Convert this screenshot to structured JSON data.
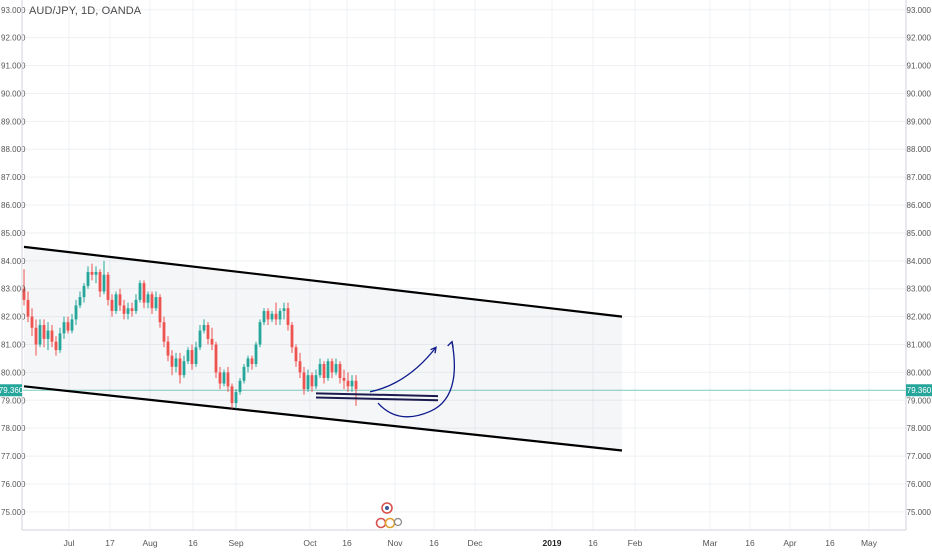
{
  "chart_data": {
    "type": "candlestick",
    "title": "AUD/JPY, 1D, OANDA",
    "y_axis": {
      "range": [
        74.35,
        93.35
      ],
      "ticks": [
        "93.000",
        "92.000",
        "91.000",
        "90.000",
        "89.000",
        "88.000",
        "87.000",
        "86.000",
        "85.000",
        "84.000",
        "83.000",
        "82.000",
        "81.000",
        "80.000",
        "79.000",
        "78.000",
        "77.000",
        "76.000",
        "75.000"
      ],
      "positions": [
        "left",
        "right"
      ]
    },
    "x_axis": {
      "tick_labels": [
        "Jul",
        "17",
        "Aug",
        "16",
        "Sep",
        "Oct",
        "16",
        "Nov",
        "16",
        "Dec",
        "2019",
        "16",
        "Feb",
        "Mar",
        "16",
        "Apr",
        "16",
        "May"
      ],
      "bold_labels": [
        "2019"
      ]
    },
    "current_price": {
      "label": "79.360",
      "value": 79.36,
      "color": "#26a69a"
    },
    "candles": [
      {
        "o": 83.0,
        "h": 83.7,
        "l": 82.4,
        "c": 82.6
      },
      {
        "o": 82.6,
        "h": 82.9,
        "l": 81.8,
        "c": 82.0
      },
      {
        "o": 82.0,
        "h": 82.3,
        "l": 81.3,
        "c": 81.6
      },
      {
        "o": 81.6,
        "h": 81.9,
        "l": 80.6,
        "c": 81.0
      },
      {
        "o": 81.0,
        "h": 81.9,
        "l": 80.9,
        "c": 81.7
      },
      {
        "o": 81.7,
        "h": 81.9,
        "l": 80.9,
        "c": 81.2
      },
      {
        "o": 81.2,
        "h": 81.8,
        "l": 80.8,
        "c": 81.5
      },
      {
        "o": 81.5,
        "h": 81.7,
        "l": 80.9,
        "c": 81.1
      },
      {
        "o": 81.1,
        "h": 81.3,
        "l": 80.6,
        "c": 80.8
      },
      {
        "o": 80.8,
        "h": 81.6,
        "l": 80.7,
        "c": 81.4
      },
      {
        "o": 81.4,
        "h": 82.0,
        "l": 81.2,
        "c": 81.8
      },
      {
        "o": 81.8,
        "h": 82.0,
        "l": 81.4,
        "c": 81.5
      },
      {
        "o": 81.5,
        "h": 82.1,
        "l": 81.4,
        "c": 81.9
      },
      {
        "o": 81.9,
        "h": 82.6,
        "l": 81.7,
        "c": 82.4
      },
      {
        "o": 82.4,
        "h": 82.9,
        "l": 82.3,
        "c": 82.7
      },
      {
        "o": 82.7,
        "h": 83.2,
        "l": 82.5,
        "c": 83.1
      },
      {
        "o": 83.1,
        "h": 83.8,
        "l": 83.0,
        "c": 83.6
      },
      {
        "o": 83.6,
        "h": 83.9,
        "l": 83.3,
        "c": 83.5
      },
      {
        "o": 83.5,
        "h": 83.8,
        "l": 83.2,
        "c": 83.6
      },
      {
        "o": 83.6,
        "h": 83.7,
        "l": 82.7,
        "c": 82.9
      },
      {
        "o": 82.9,
        "h": 84.0,
        "l": 82.8,
        "c": 83.5
      },
      {
        "o": 83.5,
        "h": 83.6,
        "l": 82.4,
        "c": 82.6
      },
      {
        "o": 82.6,
        "h": 82.8,
        "l": 82.0,
        "c": 82.2
      },
      {
        "o": 82.2,
        "h": 82.9,
        "l": 82.1,
        "c": 82.8
      },
      {
        "o": 82.8,
        "h": 83.0,
        "l": 82.2,
        "c": 82.4
      },
      {
        "o": 82.4,
        "h": 82.6,
        "l": 81.9,
        "c": 82.1
      },
      {
        "o": 82.1,
        "h": 82.5,
        "l": 81.9,
        "c": 82.3
      },
      {
        "o": 82.3,
        "h": 82.5,
        "l": 82.0,
        "c": 82.2
      },
      {
        "o": 82.2,
        "h": 82.8,
        "l": 82.1,
        "c": 82.6
      },
      {
        "o": 82.6,
        "h": 83.3,
        "l": 82.5,
        "c": 83.2
      },
      {
        "o": 83.2,
        "h": 83.3,
        "l": 82.3,
        "c": 82.5
      },
      {
        "o": 82.5,
        "h": 82.9,
        "l": 82.3,
        "c": 82.8
      },
      {
        "o": 82.8,
        "h": 82.9,
        "l": 82.1,
        "c": 82.3
      },
      {
        "o": 82.3,
        "h": 82.9,
        "l": 82.2,
        "c": 82.7
      },
      {
        "o": 82.7,
        "h": 82.8,
        "l": 81.6,
        "c": 81.8
      },
      {
        "o": 81.8,
        "h": 82.0,
        "l": 80.9,
        "c": 81.1
      },
      {
        "o": 81.1,
        "h": 81.3,
        "l": 80.4,
        "c": 80.6
      },
      {
        "o": 80.6,
        "h": 80.8,
        "l": 79.9,
        "c": 80.2
      },
      {
        "o": 80.2,
        "h": 80.7,
        "l": 80.0,
        "c": 80.5
      },
      {
        "o": 80.5,
        "h": 80.7,
        "l": 79.6,
        "c": 79.9
      },
      {
        "o": 79.9,
        "h": 80.6,
        "l": 79.8,
        "c": 80.4
      },
      {
        "o": 80.4,
        "h": 80.9,
        "l": 80.3,
        "c": 80.8
      },
      {
        "o": 80.8,
        "h": 81.0,
        "l": 80.1,
        "c": 80.3
      },
      {
        "o": 80.3,
        "h": 81.1,
        "l": 80.2,
        "c": 80.9
      },
      {
        "o": 80.9,
        "h": 81.7,
        "l": 80.8,
        "c": 81.5
      },
      {
        "o": 81.5,
        "h": 81.9,
        "l": 81.4,
        "c": 81.7
      },
      {
        "o": 81.7,
        "h": 81.8,
        "l": 81.0,
        "c": 81.2
      },
      {
        "o": 81.2,
        "h": 81.6,
        "l": 80.8,
        "c": 81.0
      },
      {
        "o": 81.0,
        "h": 81.1,
        "l": 79.8,
        "c": 80.0
      },
      {
        "o": 80.0,
        "h": 80.2,
        "l": 79.4,
        "c": 79.6
      },
      {
        "o": 79.6,
        "h": 80.1,
        "l": 79.5,
        "c": 80.0
      },
      {
        "o": 80.0,
        "h": 80.2,
        "l": 79.3,
        "c": 79.5
      },
      {
        "o": 79.5,
        "h": 79.6,
        "l": 78.7,
        "c": 78.9
      },
      {
        "o": 78.9,
        "h": 79.4,
        "l": 78.7,
        "c": 79.3
      },
      {
        "o": 79.3,
        "h": 79.8,
        "l": 79.2,
        "c": 79.7
      },
      {
        "o": 79.7,
        "h": 80.3,
        "l": 79.6,
        "c": 80.2
      },
      {
        "o": 80.2,
        "h": 80.6,
        "l": 80.0,
        "c": 80.5
      },
      {
        "o": 80.5,
        "h": 80.6,
        "l": 80.1,
        "c": 80.3
      },
      {
        "o": 80.3,
        "h": 81.1,
        "l": 80.2,
        "c": 81.0
      },
      {
        "o": 81.0,
        "h": 81.9,
        "l": 80.9,
        "c": 81.8
      },
      {
        "o": 81.8,
        "h": 82.3,
        "l": 81.7,
        "c": 82.2
      },
      {
        "o": 82.2,
        "h": 82.3,
        "l": 81.7,
        "c": 81.9
      },
      {
        "o": 81.9,
        "h": 82.2,
        "l": 81.8,
        "c": 82.1
      },
      {
        "o": 82.1,
        "h": 82.5,
        "l": 81.7,
        "c": 81.9
      },
      {
        "o": 81.9,
        "h": 82.3,
        "l": 81.7,
        "c": 82.2
      },
      {
        "o": 82.2,
        "h": 82.5,
        "l": 81.9,
        "c": 82.3
      },
      {
        "o": 82.3,
        "h": 82.5,
        "l": 81.5,
        "c": 81.7
      },
      {
        "o": 81.7,
        "h": 81.8,
        "l": 80.7,
        "c": 80.9
      },
      {
        "o": 80.9,
        "h": 81.0,
        "l": 80.2,
        "c": 80.4
      },
      {
        "o": 80.4,
        "h": 80.7,
        "l": 79.8,
        "c": 80.0
      },
      {
        "o": 80.0,
        "h": 80.2,
        "l": 79.2,
        "c": 79.4
      },
      {
        "o": 79.4,
        "h": 80.1,
        "l": 79.3,
        "c": 79.9
      },
      {
        "o": 79.9,
        "h": 80.0,
        "l": 79.3,
        "c": 79.5
      },
      {
        "o": 79.5,
        "h": 80.1,
        "l": 79.4,
        "c": 79.9
      },
      {
        "o": 79.9,
        "h": 80.5,
        "l": 79.8,
        "c": 80.3
      },
      {
        "o": 80.3,
        "h": 80.4,
        "l": 79.6,
        "c": 79.8
      },
      {
        "o": 79.8,
        "h": 80.5,
        "l": 79.7,
        "c": 80.4
      },
      {
        "o": 80.4,
        "h": 80.5,
        "l": 79.8,
        "c": 80.0
      },
      {
        "o": 80.0,
        "h": 80.5,
        "l": 79.9,
        "c": 80.3
      },
      {
        "o": 80.3,
        "h": 80.4,
        "l": 79.6,
        "c": 79.8
      },
      {
        "o": 79.8,
        "h": 80.1,
        "l": 79.4,
        "c": 79.7
      },
      {
        "o": 79.7,
        "h": 80.0,
        "l": 79.3,
        "c": 79.5
      },
      {
        "o": 79.5,
        "h": 79.9,
        "l": 79.3,
        "c": 79.7
      },
      {
        "o": 79.7,
        "h": 79.9,
        "l": 78.8,
        "c": 79.4
      }
    ],
    "drawings": {
      "channel_upper": {
        "from": {
          "candle": 0,
          "price": 84.5
        },
        "to": {
          "candle": 149.5,
          "price": 82.0
        }
      },
      "channel_lower": {
        "from": {
          "candle": 0,
          "price": 79.5
        },
        "to": {
          "candle": 149.5,
          "price": 77.2
        }
      },
      "support_lines": [
        {
          "from": {
            "candle": 73,
            "price": 79.25
          },
          "to": {
            "candle": 103.5,
            "price": 79.15
          }
        },
        {
          "from": {
            "candle": 73,
            "price": 79.1
          },
          "to": {
            "candle": 103.5,
            "price": 79.0
          }
        }
      ],
      "arrows": [
        {
          "points": [
            {
              "candle": 86.5,
              "price": 79.3
            },
            {
              "candle": 96,
              "price": 79.6
            },
            {
              "candle": 103,
              "price": 80.9
            }
          ]
        },
        {
          "points": [
            {
              "candle": 88.5,
              "price": 78.9
            },
            {
              "candle": 93.5,
              "price": 78.1
            },
            {
              "candle": 101.5,
              "price": 78.6
            },
            {
              "candle": 107,
              "price": 81.1
            }
          ]
        }
      ]
    },
    "colors": {
      "up": "#26a69a",
      "down": "#ef5350",
      "channel": "#000000",
      "support": "#1a1a4e",
      "arrow": "#0d1a8c"
    },
    "grid": true,
    "legend": "none"
  }
}
